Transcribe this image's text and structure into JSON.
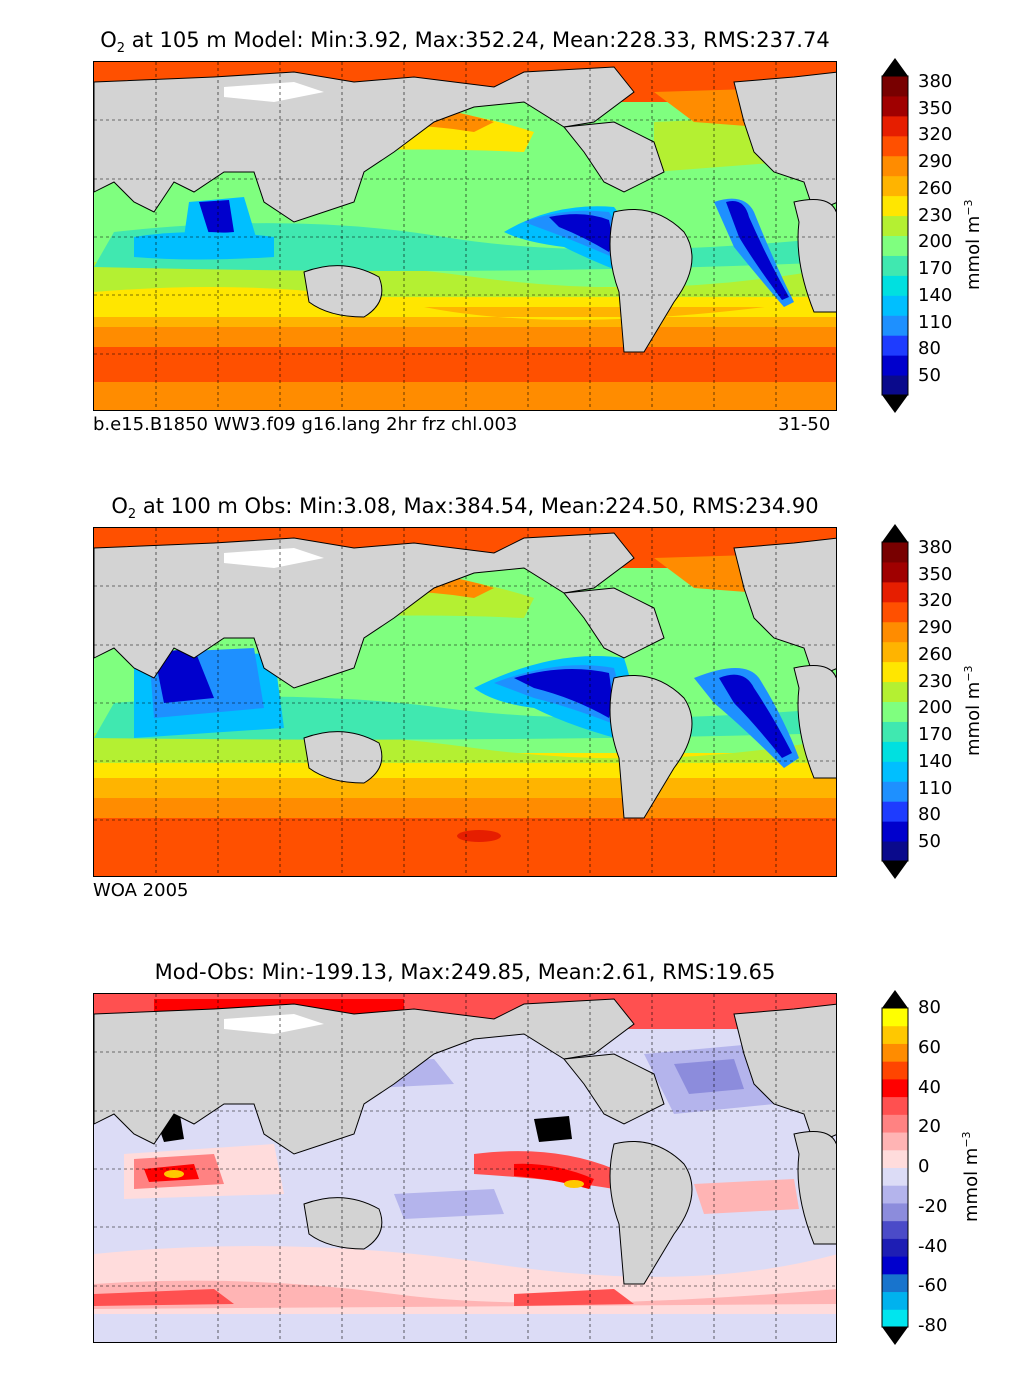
{
  "panels": [
    {
      "id": "model",
      "title_species": "O",
      "title_sub": "2",
      "title_rest": " at 105 m Model: Min:3.92, Max:352.24, Mean:228.33, RMS:237.74",
      "caption_left": "b.e15.B1850 WW3.f09 g16.lang 2hr frz chl.003",
      "caption_right": "31-50",
      "colorbar": {
        "ticks": [
          "380",
          "350",
          "320",
          "290",
          "260",
          "230",
          "200",
          "170",
          "140",
          "110",
          "80",
          "50"
        ],
        "unit_base": "mmol m",
        "unit_exp": "−3",
        "colors": [
          "#0a0a8c",
          "#0000cd",
          "#1e3cff",
          "#1e90ff",
          "#00bfff",
          "#00e0e0",
          "#40e8b0",
          "#7fff7f",
          "#b4f032",
          "#ffe600",
          "#ffb400",
          "#ff8c00",
          "#ff5000",
          "#e61e00",
          "#a00000",
          "#780000"
        ]
      }
    },
    {
      "id": "obs",
      "title_species": "O",
      "title_sub": "2",
      "title_rest": " at 100 m Obs: Min:3.08, Max:384.54, Mean:224.50, RMS:234.90",
      "caption_left": "WOA 2005",
      "caption_right": "",
      "colorbar": {
        "ticks": [
          "380",
          "350",
          "320",
          "290",
          "260",
          "230",
          "200",
          "170",
          "140",
          "110",
          "80",
          "50"
        ],
        "unit_base": "mmol m",
        "unit_exp": "−3",
        "colors": [
          "#0a0a8c",
          "#0000cd",
          "#1e3cff",
          "#1e90ff",
          "#00bfff",
          "#00e0e0",
          "#40e8b0",
          "#7fff7f",
          "#b4f032",
          "#ffe600",
          "#ffb400",
          "#ff8c00",
          "#ff5000",
          "#e61e00",
          "#a00000",
          "#780000"
        ]
      }
    },
    {
      "id": "diff",
      "title_species": "",
      "title_sub": "",
      "title_rest": "Mod-Obs: Min:-199.13, Max:249.85, Mean:2.61, RMS:19.65",
      "caption_left": "",
      "caption_right": "",
      "colorbar": {
        "ticks": [
          "80",
          "60",
          "40",
          "20",
          "0",
          "-20",
          "-40",
          "-60",
          "-80"
        ],
        "unit_base": "mmol m",
        "unit_exp": "−3",
        "colors": [
          "#00e5ee",
          "#00b2ee",
          "#1874cd",
          "#0000cd",
          "#1e1eb4",
          "#4b4bc8",
          "#8c8cdc",
          "#b4b4ec",
          "#dcdcf6",
          "#ffdcdc",
          "#ffb4b4",
          "#ff8282",
          "#ff5050",
          "#ff0000",
          "#ff4500",
          "#ff8c00",
          "#ffc800",
          "#ffff00"
        ]
      }
    }
  ],
  "colors": {
    "land": "#d3d3d3",
    "model_ocean_base": "#7fff7f",
    "diff_ocean_base": "#dcdcf6"
  }
}
